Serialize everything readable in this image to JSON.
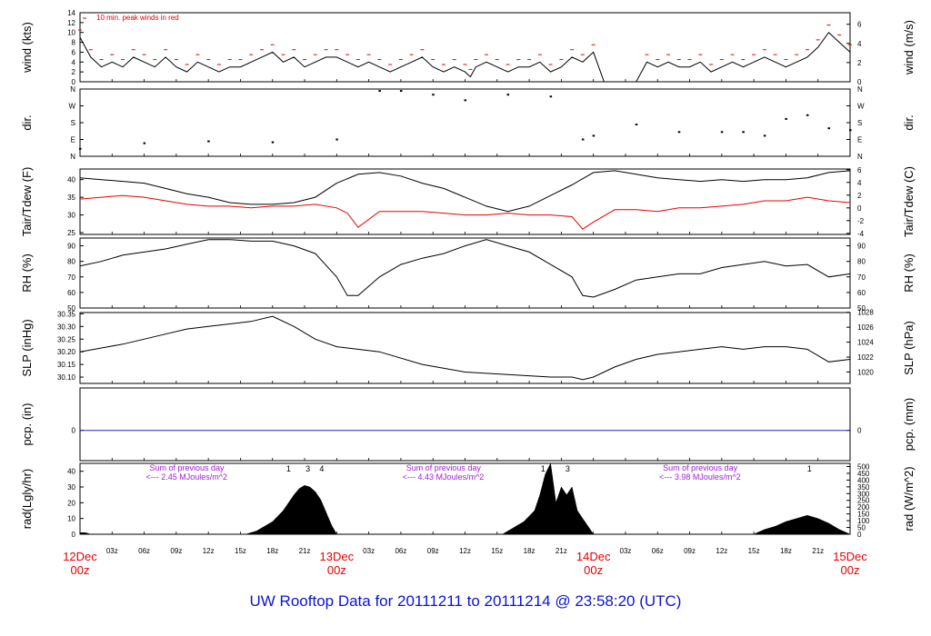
{
  "title": "UW Rooftop Data for 20111211  to  20111214 @ 23:58:20  (UTC)",
  "colors": {
    "title": "#0a14d2",
    "date_label": "#e60000",
    "peak": "#e60000",
    "dewpoint": "#e60000",
    "precip": "#2626c8",
    "annotation": "#9b1fd2"
  },
  "time_axis": {
    "hours": 72,
    "day_labels": [
      {
        "hour": 0,
        "line1": "12Dec",
        "line2": "00z"
      },
      {
        "hour": 24,
        "line1": "13Dec",
        "line2": "00z"
      },
      {
        "hour": 48,
        "line1": "14Dec",
        "line2": "00z"
      },
      {
        "hour": 72,
        "line1": "15Dec",
        "line2": "00z"
      }
    ],
    "hour_labels": [
      "03z",
      "06z",
      "09z",
      "12z",
      "15z",
      "18z",
      "21z"
    ]
  },
  "chart_data": [
    {
      "id": "wind",
      "type": "line",
      "ylabel_left": "wind (kts)",
      "ylabel_right": "wind (m/s)",
      "ylim": [
        0,
        14
      ],
      "left_ticks": [
        "0",
        "2",
        "4",
        "6",
        "8",
        "10",
        "12",
        "14"
      ],
      "right_ticks": [
        {
          "v": 0,
          "t": "0"
        },
        {
          "v": 3.89,
          "t": "2"
        },
        {
          "v": 7.78,
          "t": "4"
        },
        {
          "v": 11.66,
          "t": "6"
        }
      ],
      "annotation": "10 min. peak winds in red",
      "series": [
        {
          "name": "",
          "x": [
            0,
            1,
            2,
            3,
            4,
            5,
            6,
            7,
            8,
            9,
            10,
            11,
            12,
            13,
            14,
            15,
            16,
            17,
            18,
            19,
            20,
            21,
            22,
            23,
            24,
            25,
            26,
            27,
            28,
            29,
            30,
            31,
            32,
            33,
            34,
            35,
            36,
            36.5,
            37,
            38,
            39,
            40,
            41,
            42,
            43,
            44,
            45,
            46,
            47,
            48,
            49,
            50,
            51,
            52,
            53,
            54,
            55,
            56,
            57,
            58,
            59,
            60,
            61,
            62,
            63,
            64,
            65,
            66,
            67,
            68,
            69,
            70,
            71,
            72
          ],
          "y": [
            9,
            5,
            3,
            4,
            3,
            5,
            4,
            3,
            5,
            3,
            2,
            4,
            3,
            2,
            3,
            3,
            4,
            5,
            6,
            4,
            5,
            3,
            4,
            5,
            5,
            4,
            3,
            4,
            3,
            2,
            3,
            4,
            5,
            3,
            2,
            3,
            2,
            1,
            3,
            4,
            3,
            2,
            3,
            3,
            4,
            2,
            3,
            5,
            4,
            6,
            0,
            0,
            0,
            0,
            4,
            3,
            4,
            3,
            3,
            4,
            2,
            3,
            4,
            3,
            4,
            5,
            4,
            3,
            4,
            5,
            7,
            10,
            8,
            6
          ]
        }
      ]
    },
    {
      "id": "dir",
      "type": "scatter",
      "ylabel_left": "dir.",
      "ylabel_right": "dir.",
      "ylim": [
        0,
        360
      ],
      "left_ticks": [
        {
          "v": 0,
          "t": "N"
        },
        {
          "v": 90,
          "t": "E"
        },
        {
          "v": 180,
          "t": "S"
        },
        {
          "v": 270,
          "t": "W"
        },
        {
          "v": 360,
          "t": "N"
        }
      ],
      "right_ticks": [
        {
          "v": 0,
          "t": "N"
        },
        {
          "v": 90,
          "t": "E"
        },
        {
          "v": 180,
          "t": "S"
        },
        {
          "v": 270,
          "t": "W"
        },
        {
          "v": 360,
          "t": "N"
        }
      ],
      "series": [
        {
          "name": "",
          "x": [
            0,
            6,
            12,
            18,
            24,
            28,
            30,
            33,
            36,
            40,
            44,
            47,
            48,
            52,
            56,
            60,
            62,
            64,
            66,
            68,
            70,
            72
          ],
          "y": [
            40,
            70,
            80,
            75,
            90,
            350,
            350,
            330,
            300,
            330,
            320,
            90,
            110,
            170,
            130,
            130,
            130,
            110,
            200,
            220,
            150,
            140
          ]
        }
      ]
    },
    {
      "id": "temp",
      "type": "line",
      "ylabel_left": "Tair/Tdew (F)",
      "ylabel_right": "Tair/Tdew (C)",
      "ylim": [
        24.5,
        43
      ],
      "left_ticks": [
        "25",
        "30",
        "35",
        "40"
      ],
      "right_ticks": [
        {
          "v": 24.8,
          "t": "-4"
        },
        {
          "v": 28.4,
          "t": "-2"
        },
        {
          "v": 32,
          "t": "0"
        },
        {
          "v": 35.6,
          "t": "2"
        },
        {
          "v": 39.2,
          "t": "4"
        },
        {
          "v": 42.8,
          "t": "6"
        }
      ],
      "series": [
        {
          "name": "Tair",
          "x": [
            0,
            2,
            4,
            6,
            8,
            10,
            12,
            14,
            16,
            18,
            20,
            22,
            24,
            26,
            28,
            30,
            32,
            34,
            36,
            38,
            40,
            42,
            44,
            46,
            48,
            50,
            52,
            54,
            56,
            58,
            60,
            62,
            64,
            66,
            68,
            70,
            72
          ],
          "y": [
            40.5,
            40.0,
            39.5,
            39.0,
            37.5,
            36.0,
            35.0,
            33.5,
            33.0,
            33.0,
            33.5,
            35.0,
            39.0,
            41.5,
            42.0,
            41.0,
            39.0,
            37.5,
            35.0,
            32.5,
            31.0,
            32.5,
            35.5,
            38.5,
            42.0,
            42.5,
            41.5,
            40.5,
            40.0,
            39.5,
            40.0,
            39.5,
            40.0,
            40.0,
            40.5,
            42.0,
            42.5
          ]
        },
        {
          "name": "Tdew",
          "x": [
            0,
            2,
            4,
            6,
            8,
            10,
            12,
            14,
            16,
            18,
            20,
            22,
            24,
            25,
            26,
            28,
            30,
            32,
            34,
            36,
            38,
            40,
            42,
            44,
            46,
            47,
            48,
            50,
            52,
            54,
            56,
            58,
            60,
            62,
            64,
            66,
            68,
            70,
            72
          ],
          "y": [
            34.5,
            35.0,
            35.5,
            35.0,
            34.0,
            33.0,
            32.5,
            32.5,
            32.0,
            32.5,
            32.5,
            33.0,
            32.0,
            30.5,
            26.5,
            31.0,
            31.0,
            31.0,
            30.5,
            30.0,
            30.0,
            30.5,
            30.0,
            30.0,
            29.5,
            26.0,
            28.0,
            31.5,
            31.5,
            31.0,
            32.0,
            32.0,
            32.5,
            33.0,
            34.0,
            34.0,
            35.0,
            34.0,
            33.5
          ]
        }
      ]
    },
    {
      "id": "rh",
      "type": "line",
      "ylabel_left": "RH (%)",
      "ylabel_right": "RH (%)",
      "ylim": [
        50,
        95
      ],
      "left_ticks": [
        "50",
        "60",
        "70",
        "80",
        "90"
      ],
      "right_ticks": [
        {
          "v": 50,
          "t": "50"
        },
        {
          "v": 60,
          "t": "60"
        },
        {
          "v": 70,
          "t": "70"
        },
        {
          "v": 80,
          "t": "80"
        },
        {
          "v": 90,
          "t": "90"
        }
      ],
      "series": [
        {
          "name": "",
          "x": [
            0,
            2,
            4,
            6,
            8,
            10,
            12,
            14,
            16,
            18,
            20,
            22,
            24,
            25,
            26,
            28,
            30,
            32,
            34,
            36,
            38,
            40,
            42,
            44,
            46,
            47,
            48,
            50,
            52,
            54,
            56,
            58,
            60,
            62,
            64,
            66,
            68,
            70,
            72
          ],
          "y": [
            77,
            80,
            84,
            86,
            88,
            91,
            94,
            94,
            93,
            93,
            90,
            85,
            70,
            58,
            58,
            70,
            78,
            82,
            85,
            90,
            94,
            90,
            86,
            78,
            70,
            58,
            57,
            62,
            68,
            70,
            72,
            72,
            76,
            78,
            80,
            77,
            78,
            70,
            72
          ]
        }
      ]
    },
    {
      "id": "slp",
      "type": "line",
      "ylabel_left": "SLP (inHg)",
      "ylabel_right": "SLP (hPa)",
      "ylim": [
        30.075,
        30.355
      ],
      "left_ticks": [
        "30.10",
        "30.15",
        "30.20",
        "30.25",
        "30.30",
        "30.35"
      ],
      "right_ticks": [
        {
          "v": 30.12,
          "t": "1020"
        },
        {
          "v": 30.179,
          "t": "1022"
        },
        {
          "v": 30.238,
          "t": "1024"
        },
        {
          "v": 30.297,
          "t": "1026"
        },
        {
          "v": 30.356,
          "t": "1028"
        }
      ],
      "series": [
        {
          "name": "",
          "x": [
            0,
            4,
            8,
            10,
            12,
            16,
            18,
            20,
            22,
            24,
            28,
            32,
            36,
            40,
            44,
            46,
            47,
            48,
            50,
            52,
            54,
            56,
            58,
            60,
            62,
            64,
            66,
            68,
            70,
            72
          ],
          "y": [
            30.2,
            30.23,
            30.27,
            30.29,
            30.3,
            30.32,
            30.34,
            30.3,
            30.25,
            30.22,
            30.2,
            30.15,
            30.12,
            30.11,
            30.1,
            30.1,
            30.09,
            30.1,
            30.14,
            30.17,
            30.19,
            30.2,
            30.21,
            30.22,
            30.21,
            30.22,
            30.22,
            30.21,
            30.16,
            30.17
          ]
        }
      ]
    },
    {
      "id": "pcp",
      "type": "line",
      "ylabel_left": "pcp. (in)",
      "ylabel_right": "pcp. (mm)",
      "ylim": [
        -1,
        1.4
      ],
      "left_ticks": [
        "0"
      ],
      "right_ticks": [
        {
          "v": 0,
          "t": "0"
        }
      ],
      "series": [
        {
          "name": "",
          "x": [
            0,
            72
          ],
          "y": [
            0,
            0
          ]
        }
      ]
    },
    {
      "id": "rad",
      "type": "area",
      "ylabel_left": "rad(Lgly/hr)",
      "ylabel_right": "rad (W/m^2)",
      "ylim": [
        0,
        45
      ],
      "left_ticks": [
        "0",
        "10",
        "20",
        "30",
        "40"
      ],
      "right_ticks": [
        {
          "v": 0,
          "t": "0"
        },
        {
          "v": 4.3,
          "t": "50"
        },
        {
          "v": 8.6,
          "t": "100"
        },
        {
          "v": 12.9,
          "t": "150"
        },
        {
          "v": 17.2,
          "t": "200"
        },
        {
          "v": 21.5,
          "t": "250"
        },
        {
          "v": 25.8,
          "t": "300"
        },
        {
          "v": 30.1,
          "t": "350"
        },
        {
          "v": 34.4,
          "t": "400"
        },
        {
          "v": 38.7,
          "t": "450"
        },
        {
          "v": 43,
          "t": "500"
        }
      ],
      "series": [
        {
          "name": "",
          "x": [
            0,
            0.5,
            1,
            15.5,
            16.5,
            18,
            19,
            20,
            20.5,
            21,
            21.5,
            22,
            22.5,
            23,
            23.5,
            24,
            39.5,
            40.5,
            41.5,
            42.5,
            43,
            43.5,
            44,
            44.5,
            45,
            45.5,
            46,
            46.5,
            47,
            47.5,
            48,
            63,
            64,
            65,
            66,
            67,
            68,
            69,
            70,
            71,
            72
          ],
          "y": [
            1,
            1,
            0,
            0,
            2,
            8,
            15,
            25,
            29,
            31,
            30,
            27,
            22,
            14,
            6,
            0,
            0,
            4,
            8,
            15,
            25,
            38,
            45,
            20,
            30,
            25,
            30,
            15,
            10,
            5,
            0,
            0,
            3,
            5,
            8,
            10,
            12,
            10,
            7,
            3,
            0
          ]
        }
      ],
      "annotations": [
        {
          "line1": "Sum of previous day",
          "line2": "<--- 2.45 MJoules/m^2",
          "hour": 6.5
        },
        {
          "line1": "Sum of previous day",
          "line2": "<--- 4.43 MJoules/m^2",
          "hour": 30.5
        },
        {
          "line1": "Sum of previous day",
          "line2": "<--- 3.98 MJoules/m^2",
          "hour": 54.5
        }
      ],
      "markers": [
        {
          "hour": 19.5,
          "text": "1"
        },
        {
          "hour": 21.3,
          "text": "3"
        },
        {
          "hour": 22.6,
          "text": "4"
        },
        {
          "hour": 43.3,
          "text": "1"
        },
        {
          "hour": 45.6,
          "text": "3"
        },
        {
          "hour": 68.2,
          "text": "1"
        }
      ]
    }
  ]
}
